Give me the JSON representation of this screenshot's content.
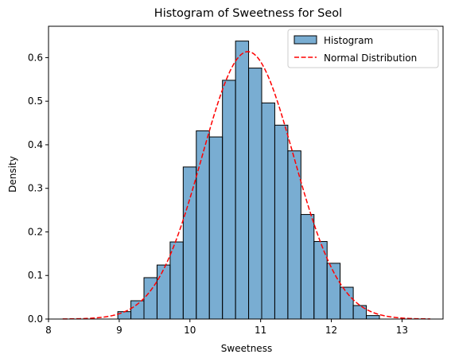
{
  "chart_data": {
    "type": "bar",
    "title": "Histogram of Sweetness for Seol",
    "xlabel": "Sweetness",
    "ylabel": "Density",
    "xlim": [
      8.0,
      13.58
    ],
    "ylim": [
      0,
      0.672
    ],
    "xticks": [
      8,
      9,
      10,
      11,
      12,
      13
    ],
    "yticks": [
      0.0,
      0.1,
      0.2,
      0.3,
      0.4,
      0.5,
      0.6
    ],
    "grid": false,
    "legend_position": "top-right",
    "colors": {
      "bar_fill": "#1f77b4",
      "bar_alpha": 0.6,
      "bar_edge": "#000000",
      "line": "#ff0000"
    },
    "histogram": {
      "name": "Histogram",
      "bin_width": 0.185,
      "bins": [
        {
          "start": 8.98,
          "density": 0.017
        },
        {
          "start": 9.165,
          "density": 0.042
        },
        {
          "start": 9.35,
          "density": 0.095
        },
        {
          "start": 9.535,
          "density": 0.124
        },
        {
          "start": 9.72,
          "density": 0.177
        },
        {
          "start": 9.905,
          "density": 0.349
        },
        {
          "start": 10.09,
          "density": 0.432
        },
        {
          "start": 10.275,
          "density": 0.418
        },
        {
          "start": 10.46,
          "density": 0.548
        },
        {
          "start": 10.645,
          "density": 0.638
        },
        {
          "start": 10.83,
          "density": 0.576
        },
        {
          "start": 11.015,
          "density": 0.496
        },
        {
          "start": 11.2,
          "density": 0.445
        },
        {
          "start": 11.385,
          "density": 0.386
        },
        {
          "start": 11.57,
          "density": 0.24
        },
        {
          "start": 11.755,
          "density": 0.178
        },
        {
          "start": 11.94,
          "density": 0.128
        },
        {
          "start": 12.125,
          "density": 0.073
        },
        {
          "start": 12.31,
          "density": 0.031
        },
        {
          "start": 12.495,
          "density": 0.008
        }
      ]
    },
    "normal_distribution": {
      "name": "Normal Distribution",
      "mean": 10.82,
      "std": 0.65,
      "x_range": [
        8.2,
        13.4
      ],
      "style": "dashed"
    }
  }
}
